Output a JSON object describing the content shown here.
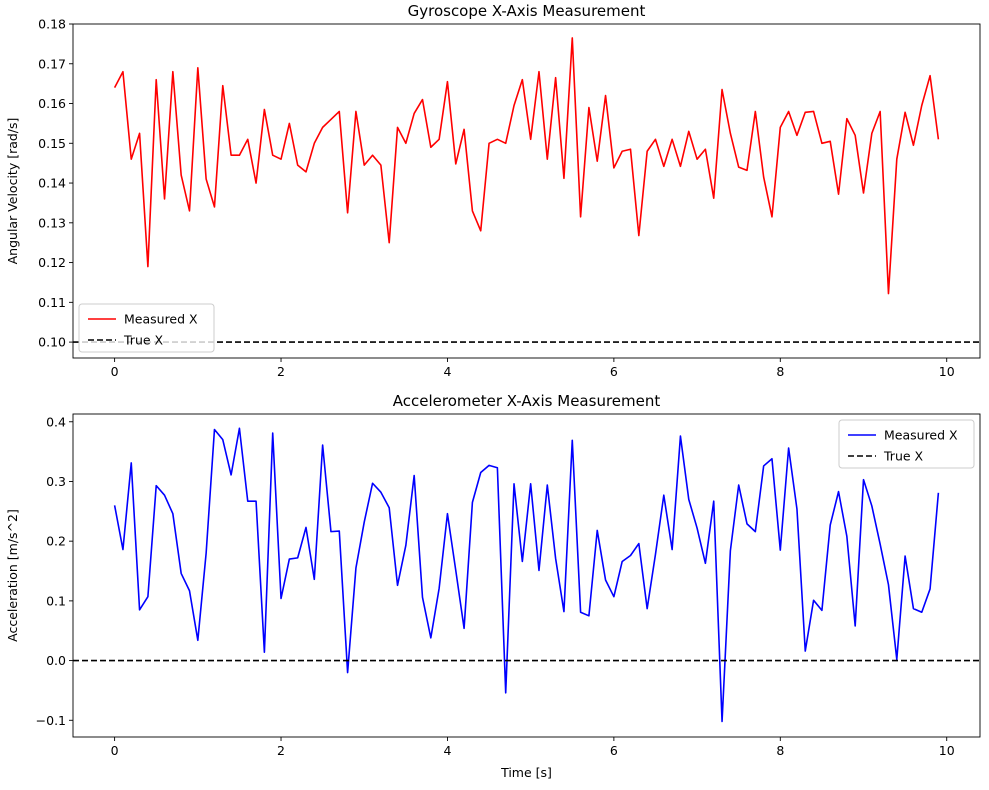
{
  "chart_data": [
    {
      "type": "line",
      "title": "Gyroscope X-Axis Measurement",
      "xlabel": "",
      "ylabel": "Angular Velocity [rad/s]",
      "xlim": [
        -0.5,
        10.4
      ],
      "ylim": [
        0.096,
        0.18
      ],
      "xticks": [
        0,
        2,
        4,
        6,
        8,
        10
      ],
      "yticks": [
        0.1,
        0.11,
        0.12,
        0.13,
        0.14,
        0.15,
        0.16,
        0.17,
        0.18
      ],
      "ytick_labels": [
        "0.10",
        "0.11",
        "0.12",
        "0.13",
        "0.14",
        "0.15",
        "0.16",
        "0.17",
        "0.18"
      ],
      "legend_position": "lower-left",
      "grid": false,
      "series": [
        {
          "name": "Measured X",
          "color": "#ff0000",
          "style": "solid",
          "x_start": 0,
          "x_step": 0.1,
          "values": [
            0.164,
            0.168,
            0.146,
            0.1525,
            0.119,
            0.166,
            0.136,
            0.168,
            0.142,
            0.133,
            0.169,
            0.141,
            0.134,
            0.1645,
            0.147,
            0.147,
            0.151,
            0.14,
            0.1585,
            0.147,
            0.146,
            0.155,
            0.1445,
            0.1428,
            0.15,
            0.154,
            0.156,
            0.158,
            0.1325,
            0.158,
            0.1445,
            0.147,
            0.1445,
            0.125,
            0.154,
            0.15,
            0.1575,
            0.161,
            0.149,
            0.151,
            0.1655,
            0.1448,
            0.1535,
            0.133,
            0.128,
            0.15,
            0.151,
            0.15,
            0.1595,
            0.166,
            0.151,
            0.168,
            0.146,
            0.1665,
            0.1412,
            0.1765,
            0.1315,
            0.159,
            0.1455,
            0.162,
            0.1438,
            0.148,
            0.1485,
            0.1268,
            0.148,
            0.151,
            0.1442,
            0.151,
            0.1442,
            0.153,
            0.146,
            0.1485,
            0.1362,
            0.1635,
            0.1525,
            0.144,
            0.1432,
            0.158,
            0.1415,
            0.1315,
            0.154,
            0.158,
            0.152,
            0.1578,
            0.158,
            0.15,
            0.1505,
            0.1372,
            0.1562,
            0.152,
            0.1375,
            0.1525,
            0.158,
            0.1122,
            0.146,
            0.1578,
            0.1495,
            0.1595,
            0.167,
            0.151
          ]
        },
        {
          "name": "True X",
          "color": "#000000",
          "style": "dashed",
          "hline": 0.1
        }
      ]
    },
    {
      "type": "line",
      "title": "Accelerometer X-Axis Measurement",
      "xlabel": "Time [s]",
      "ylabel": "Acceleration [m/s^2]",
      "xlim": [
        -0.5,
        10.4
      ],
      "ylim": [
        -0.128,
        0.413
      ],
      "xticks": [
        0,
        2,
        4,
        6,
        8,
        10
      ],
      "yticks": [
        -0.1,
        0.0,
        0.1,
        0.2,
        0.3,
        0.4
      ],
      "ytick_labels": [
        "−0.1",
        "0.0",
        "0.1",
        "0.2",
        "0.3",
        "0.4"
      ],
      "legend_position": "upper-right",
      "grid": false,
      "series": [
        {
          "name": "Measured X",
          "color": "#0000ff",
          "style": "solid",
          "x_start": 0,
          "x_step": 0.1,
          "values": [
            0.26,
            0.186,
            0.331,
            0.085,
            0.107,
            0.293,
            0.277,
            0.246,
            0.146,
            0.117,
            0.034,
            0.18,
            0.387,
            0.37,
            0.311,
            0.389,
            0.267,
            0.267,
            0.014,
            0.381,
            0.104,
            0.17,
            0.172,
            0.223,
            0.136,
            0.361,
            0.216,
            0.217,
            -0.02,
            0.155,
            0.232,
            0.297,
            0.282,
            0.256,
            0.126,
            0.193,
            0.31,
            0.106,
            0.038,
            0.121,
            0.246,
            0.151,
            0.054,
            0.265,
            0.315,
            0.327,
            0.323,
            -0.054,
            0.296,
            0.166,
            0.296,
            0.151,
            0.294,
            0.171,
            0.082,
            0.369,
            0.081,
            0.075,
            0.218,
            0.135,
            0.107,
            0.166,
            0.176,
            0.196,
            0.087,
            0.178,
            0.277,
            0.186,
            0.376,
            0.27,
            0.222,
            0.163,
            0.267,
            -0.102,
            0.184,
            0.294,
            0.229,
            0.216,
            0.326,
            0.338,
            0.185,
            0.356,
            0.254,
            0.016,
            0.101,
            0.084,
            0.227,
            0.283,
            0.208,
            0.058,
            0.303,
            0.259,
            0.195,
            0.127,
            0.002,
            0.175,
            0.087,
            0.081,
            0.12,
            0.281
          ]
        },
        {
          "name": "True X",
          "color": "#000000",
          "style": "dashed",
          "hline": 0.0
        }
      ]
    }
  ]
}
